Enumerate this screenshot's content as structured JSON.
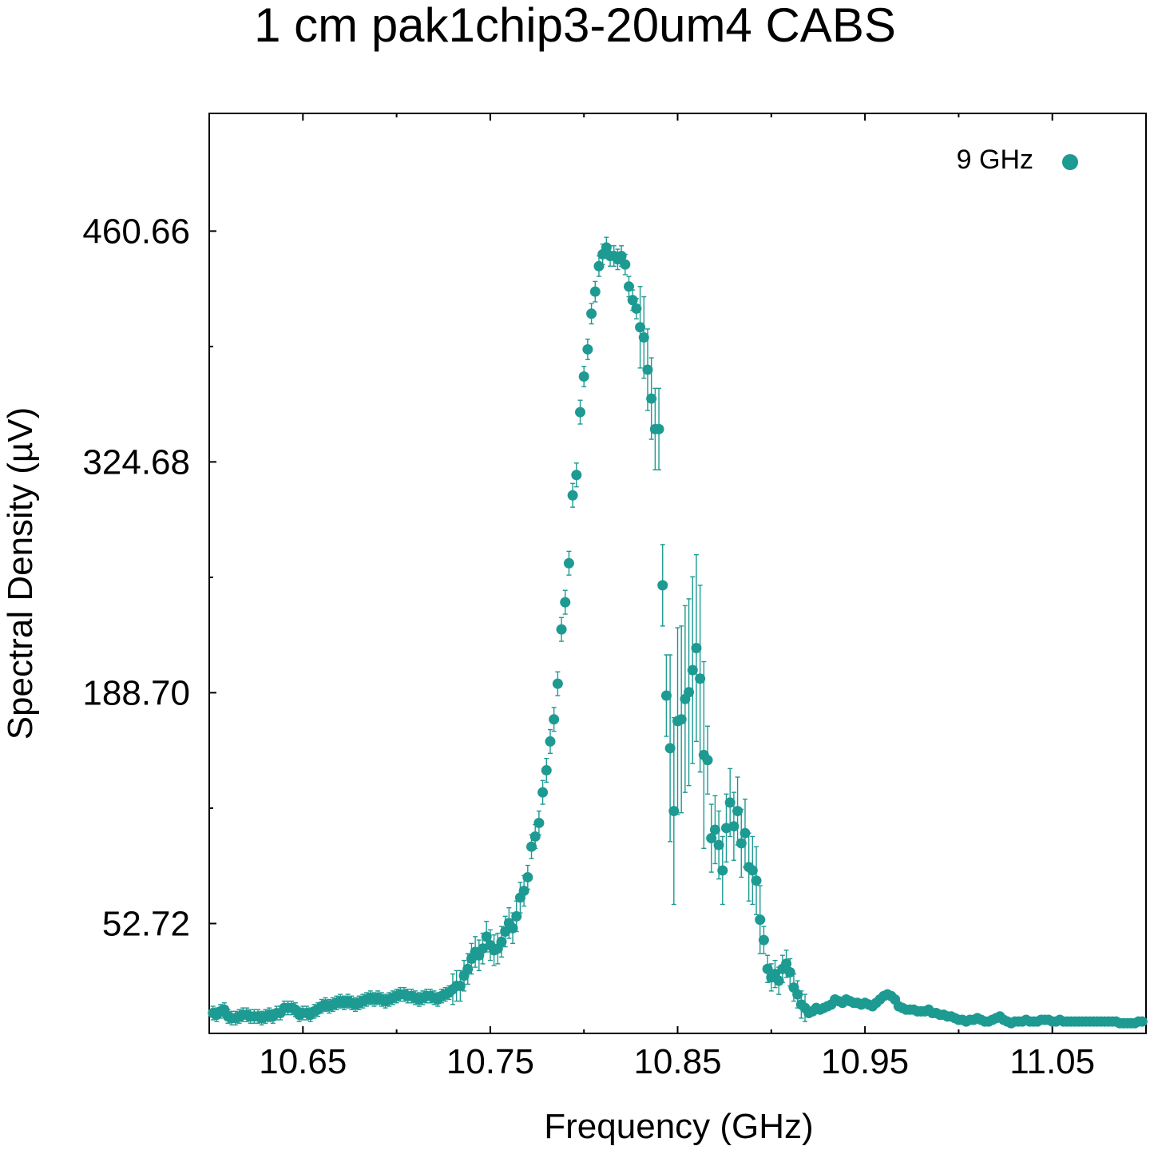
{
  "chart_data": {
    "type": "scatter",
    "title": "1 cm pak1chip3-20um4 CABS",
    "xlabel": "Frequency (GHz)",
    "ylabel": "Spectral Density (µV)",
    "xlim": [
      10.6,
      11.1
    ],
    "ylim": [
      -12,
      530
    ],
    "x_ticks": [
      10.65,
      10.75,
      10.85,
      10.95,
      11.05
    ],
    "x_tick_labels": [
      "10.65",
      "10.75",
      "10.85",
      "10.95",
      "11.05"
    ],
    "y_ticks": [
      52.72,
      188.7,
      324.68,
      460.66
    ],
    "y_tick_labels": [
      "52.72",
      "188.70",
      "324.68",
      "460.66"
    ],
    "y_minor_ticks": [
      120.71,
      256.69,
      392.67
    ],
    "grid": false,
    "legend_position": "top-right",
    "color": "#1d9a92",
    "series": [
      {
        "name": "9 GHz",
        "points": [
          [
            10.602,
            0
          ],
          [
            10.604,
            -1
          ],
          [
            10.606,
            1
          ],
          [
            10.608,
            2
          ],
          [
            10.61,
            -2
          ],
          [
            10.612,
            -3
          ],
          [
            10.614,
            -3
          ],
          [
            10.616,
            -2
          ],
          [
            10.618,
            -1
          ],
          [
            10.62,
            -1
          ],
          [
            10.622,
            -2
          ],
          [
            10.624,
            -2
          ],
          [
            10.626,
            -2
          ],
          [
            10.628,
            -3
          ],
          [
            10.63,
            -2
          ],
          [
            10.632,
            -1
          ],
          [
            10.634,
            -2
          ],
          [
            10.636,
            0
          ],
          [
            10.638,
            0
          ],
          [
            10.64,
            3
          ],
          [
            10.642,
            3
          ],
          [
            10.644,
            3
          ],
          [
            10.646,
            2
          ],
          [
            10.648,
            -1
          ],
          [
            10.65,
            0
          ],
          [
            10.652,
            0
          ],
          [
            10.654,
            -1
          ],
          [
            10.656,
            1
          ],
          [
            10.658,
            2
          ],
          [
            10.66,
            4
          ],
          [
            10.662,
            5
          ],
          [
            10.664,
            4
          ],
          [
            10.666,
            5
          ],
          [
            10.668,
            6
          ],
          [
            10.67,
            7
          ],
          [
            10.672,
            6
          ],
          [
            10.674,
            7
          ],
          [
            10.676,
            6
          ],
          [
            10.678,
            5
          ],
          [
            10.68,
            6
          ],
          [
            10.682,
            7
          ],
          [
            10.684,
            8
          ],
          [
            10.686,
            9
          ],
          [
            10.688,
            8
          ],
          [
            10.69,
            9
          ],
          [
            10.692,
            8
          ],
          [
            10.694,
            7
          ],
          [
            10.696,
            8
          ],
          [
            10.698,
            9
          ],
          [
            10.7,
            10
          ],
          [
            10.702,
            11
          ],
          [
            10.704,
            11
          ],
          [
            10.706,
            10
          ],
          [
            10.708,
            10
          ],
          [
            10.71,
            9
          ],
          [
            10.712,
            8
          ],
          [
            10.714,
            9
          ],
          [
            10.716,
            10
          ],
          [
            10.718,
            10
          ],
          [
            10.72,
            9
          ],
          [
            10.722,
            8
          ],
          [
            10.724,
            10
          ],
          [
            10.726,
            11
          ],
          [
            10.728,
            12
          ],
          [
            10.73,
            14
          ],
          [
            10.732,
            16
          ],
          [
            10.734,
            16
          ],
          [
            10.736,
            22
          ],
          [
            10.738,
            26
          ],
          [
            10.74,
            32
          ],
          [
            10.742,
            36
          ],
          [
            10.744,
            34
          ],
          [
            10.746,
            38
          ],
          [
            10.748,
            45
          ],
          [
            10.75,
            40
          ],
          [
            10.752,
            37
          ],
          [
            10.754,
            38
          ],
          [
            10.756,
            42
          ],
          [
            10.758,
            48
          ],
          [
            10.76,
            53
          ],
          [
            10.762,
            50
          ],
          [
            10.764,
            57
          ],
          [
            10.766,
            68
          ],
          [
            10.768,
            72
          ],
          [
            10.77,
            80
          ],
          [
            10.772,
            98
          ],
          [
            10.774,
            104
          ],
          [
            10.776,
            112
          ],
          [
            10.778,
            130
          ],
          [
            10.78,
            143
          ],
          [
            10.782,
            160
          ],
          [
            10.784,
            173
          ],
          [
            10.786,
            194
          ],
          [
            10.788,
            226
          ],
          [
            10.79,
            242
          ],
          [
            10.792,
            265
          ],
          [
            10.794,
            305
          ],
          [
            10.796,
            317
          ],
          [
            10.798,
            354
          ],
          [
            10.8,
            375
          ],
          [
            10.802,
            391
          ],
          [
            10.804,
            412
          ],
          [
            10.806,
            425
          ],
          [
            10.808,
            440
          ],
          [
            10.81,
            447
          ],
          [
            10.812,
            451
          ],
          [
            10.814,
            446
          ],
          [
            10.816,
            446
          ],
          [
            10.818,
            444
          ],
          [
            10.82,
            446
          ],
          [
            10.822,
            441
          ],
          [
            10.824,
            428
          ],
          [
            10.826,
            420
          ],
          [
            10.828,
            415
          ],
          [
            10.83,
            404
          ],
          [
            10.832,
            398
          ],
          [
            10.834,
            379
          ],
          [
            10.836,
            362
          ],
          [
            10.838,
            344
          ],
          [
            10.84,
            344
          ],
          [
            10.842,
            252
          ],
          [
            10.844,
            187
          ],
          [
            10.846,
            156
          ],
          [
            10.848,
            119
          ],
          [
            10.85,
            172
          ],
          [
            10.852,
            173
          ],
          [
            10.854,
            185
          ],
          [
            10.856,
            189
          ],
          [
            10.858,
            202
          ],
          [
            10.86,
            215
          ],
          [
            10.862,
            197
          ],
          [
            10.864,
            152
          ],
          [
            10.866,
            149
          ],
          [
            10.868,
            103
          ],
          [
            10.87,
            108
          ],
          [
            10.872,
            99
          ],
          [
            10.874,
            84
          ],
          [
            10.876,
            109
          ],
          [
            10.878,
            124
          ],
          [
            10.88,
            110
          ],
          [
            10.882,
            119
          ],
          [
            10.884,
            100
          ],
          [
            10.886,
            106
          ],
          [
            10.888,
            86
          ],
          [
            10.89,
            84
          ],
          [
            10.892,
            78
          ],
          [
            10.894,
            55
          ],
          [
            10.896,
            43
          ],
          [
            10.898,
            26
          ],
          [
            10.9,
            21
          ],
          [
            10.902,
            23
          ],
          [
            10.904,
            19
          ],
          [
            10.906,
            26
          ],
          [
            10.908,
            29
          ],
          [
            10.91,
            24
          ],
          [
            10.912,
            15
          ],
          [
            10.914,
            11
          ],
          [
            10.916,
            5
          ],
          [
            10.918,
            3
          ],
          [
            10.92,
            0
          ],
          [
            10.922,
            1
          ],
          [
            10.924,
            3
          ],
          [
            10.926,
            2
          ],
          [
            10.928,
            3
          ],
          [
            10.93,
            4
          ],
          [
            10.932,
            5
          ],
          [
            10.934,
            8
          ],
          [
            10.936,
            7
          ],
          [
            10.938,
            6
          ],
          [
            10.94,
            8
          ],
          [
            10.942,
            7
          ],
          [
            10.944,
            6
          ],
          [
            10.946,
            6
          ],
          [
            10.948,
            5
          ],
          [
            10.95,
            6
          ],
          [
            10.952,
            5
          ],
          [
            10.954,
            4
          ],
          [
            10.956,
            6
          ],
          [
            10.958,
            8
          ],
          [
            10.96,
            10
          ],
          [
            10.962,
            11
          ],
          [
            10.964,
            10
          ],
          [
            10.966,
            8
          ],
          [
            10.968,
            4
          ],
          [
            10.97,
            3
          ],
          [
            10.972,
            2
          ],
          [
            10.974,
            2
          ],
          [
            10.976,
            2
          ],
          [
            10.978,
            1
          ],
          [
            10.98,
            1
          ],
          [
            10.982,
            1
          ],
          [
            10.984,
            2
          ],
          [
            10.986,
            0
          ],
          [
            10.988,
            0
          ],
          [
            10.99,
            -1
          ],
          [
            10.992,
            -1
          ],
          [
            10.994,
            -2
          ],
          [
            10.996,
            -2
          ],
          [
            10.998,
            -3
          ],
          [
            11.0,
            -4
          ],
          [
            11.002,
            -4
          ],
          [
            11.004,
            -5
          ],
          [
            11.006,
            -4
          ],
          [
            11.008,
            -4
          ],
          [
            11.01,
            -3
          ],
          [
            11.012,
            -4
          ],
          [
            11.014,
            -5
          ],
          [
            11.016,
            -5
          ],
          [
            11.018,
            -4
          ],
          [
            11.02,
            -3
          ],
          [
            11.022,
            -2
          ],
          [
            11.024,
            -4
          ],
          [
            11.026,
            -5
          ],
          [
            11.028,
            -6
          ],
          [
            11.03,
            -5
          ],
          [
            11.032,
            -5
          ],
          [
            11.034,
            -5
          ],
          [
            11.036,
            -4
          ],
          [
            11.038,
            -5
          ],
          [
            11.04,
            -5
          ],
          [
            11.042,
            -5
          ],
          [
            11.044,
            -4
          ],
          [
            11.046,
            -4
          ],
          [
            11.048,
            -4
          ],
          [
            11.05,
            -5
          ],
          [
            11.052,
            -5
          ],
          [
            11.054,
            -4
          ],
          [
            11.056,
            -5
          ],
          [
            11.058,
            -5
          ],
          [
            11.06,
            -5
          ],
          [
            11.062,
            -5
          ],
          [
            11.064,
            -5
          ],
          [
            11.066,
            -5
          ],
          [
            11.068,
            -5
          ],
          [
            11.07,
            -5
          ],
          [
            11.072,
            -5
          ],
          [
            11.074,
            -5
          ],
          [
            11.076,
            -5
          ],
          [
            11.078,
            -5
          ],
          [
            11.08,
            -5
          ],
          [
            11.082,
            -5
          ],
          [
            11.084,
            -5
          ],
          [
            11.086,
            -6
          ],
          [
            11.088,
            -6
          ],
          [
            11.09,
            -6
          ],
          [
            11.092,
            -6
          ],
          [
            11.094,
            -6
          ],
          [
            11.096,
            -5
          ],
          [
            11.098,
            -5
          ]
        ],
        "error_regions": [
          {
            "x_range": [
              10.6,
              10.73
            ],
            "error": 4
          },
          {
            "x_range": [
              10.73,
              10.77
            ],
            "error": 9
          },
          {
            "x_range": [
              10.77,
              10.8
            ],
            "error": 7
          },
          {
            "x_range": [
              10.8,
              10.83
            ],
            "error": 6
          },
          {
            "x_range": [
              10.83,
              10.845
            ],
            "error": 24
          },
          {
            "x_range": [
              10.845,
              10.865
            ],
            "error": 55
          },
          {
            "x_range": [
              10.865,
              10.895
            ],
            "error": 20
          },
          {
            "x_range": [
              10.895,
              10.92
            ],
            "error": 8
          },
          {
            "x_range": [
              10.92,
              11.1
            ],
            "error": 2
          }
        ]
      }
    ]
  }
}
